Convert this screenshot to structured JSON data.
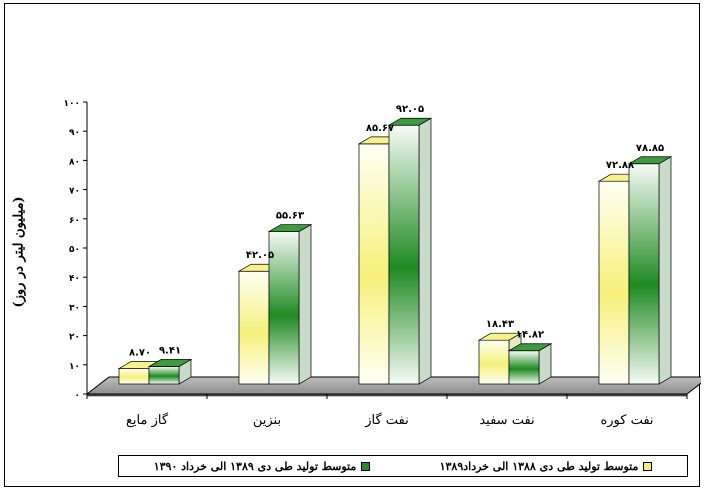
{
  "chart_data": {
    "type": "bar",
    "title": "",
    "xlabel": "",
    "ylabel": "(میلیون لیتر در روز)",
    "ylim": [
      0,
      100
    ],
    "y_ticks": [
      "۰",
      "۱۰",
      "۲۰",
      "۳۰",
      "۴۰",
      "۵۰",
      "۶۰",
      "۷۰",
      "۸۰",
      "۹۰",
      "۱۰۰"
    ],
    "categories": [
      "گاز مایع",
      "بنزین",
      "نفت گاز",
      "نفت سفید",
      "نفت کوره"
    ],
    "series": [
      {
        "name": "متوسط تولید طی دی ۱۳۸۸ الی خرداد۱۳۸۹",
        "values": [
          8.7,
          42.05,
          85.67,
          18.43,
          72.88
        ],
        "labels": [
          "۸.۷۰",
          "۴۲.۰۵",
          "۸۵.۶۷",
          "۱۸.۴۳",
          "۷۲.۸۸"
        ],
        "color": "#f4ee70"
      },
      {
        "name": "متوسط تولید طی دی ۱۳۸۹ الی خرداد ۱۳۹۰",
        "values": [
          9.41,
          55.63,
          92.05,
          14.82,
          78.85
        ],
        "labels": [
          "۹.۴۱",
          "۵۵.۶۳",
          "۹۲.۰۵",
          "۱۴.۸۲",
          "۷۸.۸۵"
        ],
        "color": "#2a8a2a"
      }
    ],
    "grid": false,
    "legend_position": "bottom"
  }
}
